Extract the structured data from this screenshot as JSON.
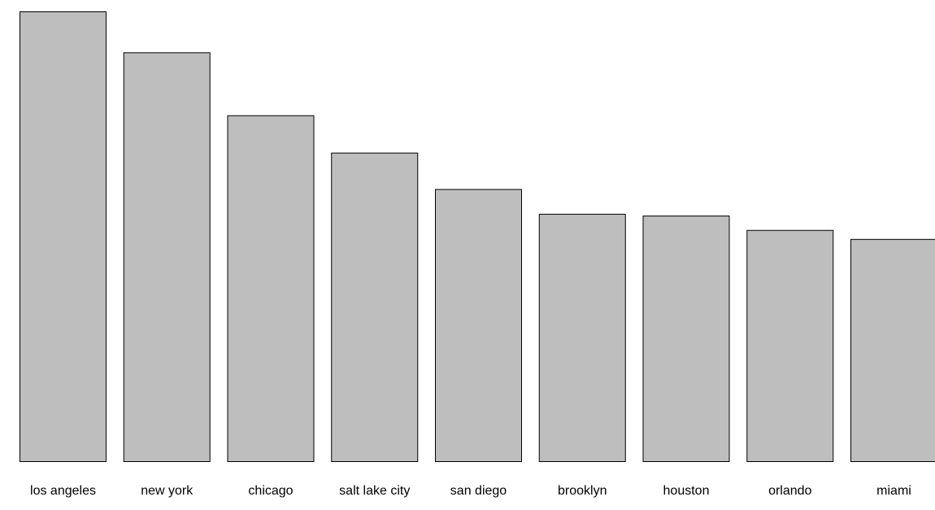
{
  "chart_data": {
    "type": "bar",
    "categories": [
      "los angeles",
      "new york",
      "chicago",
      "salt lake city",
      "san diego",
      "brooklyn",
      "houston",
      "orlando",
      "miami"
    ],
    "values": [
      100,
      90.9,
      76.9,
      68.6,
      60.5,
      55.0,
      54.6,
      51.4,
      49.4
    ],
    "ylim": [
      0,
      100
    ],
    "grid": false,
    "legend": "none",
    "bar_color": "#bebebe",
    "edge_color": "#000000"
  }
}
